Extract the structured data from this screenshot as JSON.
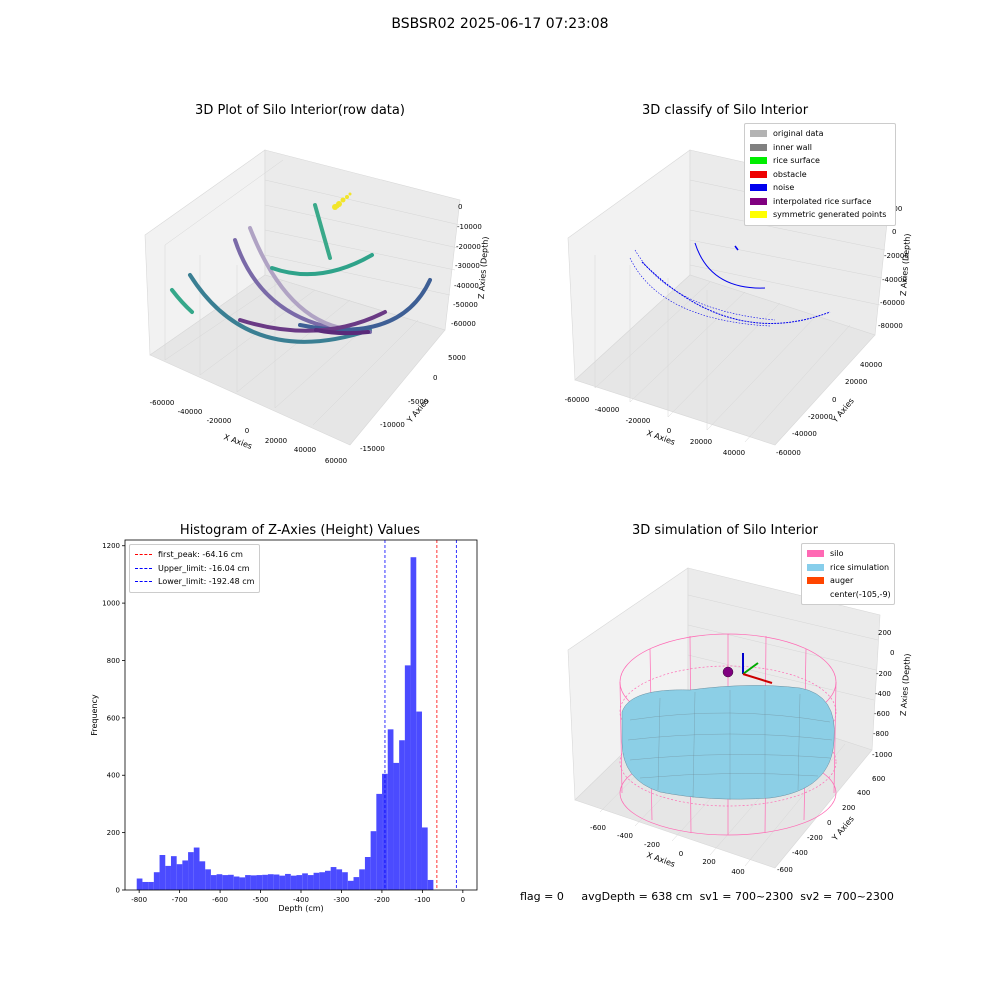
{
  "suptitle": "BSBSR02 2025-06-17 07:23:08",
  "footer": {
    "flag": "flag = 0",
    "avg_depth": "avgDepth = 638 cm",
    "sv1": "sv1 = 700~2300",
    "sv2": "sv2 = 700~2300"
  },
  "panels": {
    "raw": {
      "title": "3D Plot of Silo Interior(row data)",
      "xlabel": "X Axies",
      "ylabel": "Y Axies",
      "zlabel": "Z Axies (Depth)",
      "xticks": [
        "-60000",
        "-40000",
        "-20000",
        "0",
        "20000",
        "40000",
        "60000"
      ],
      "yticks": [
        "5000",
        "0",
        "-5000",
        "-10000",
        "-15000"
      ],
      "zticks": [
        "0",
        "-10000",
        "-20000",
        "-30000",
        "-40000",
        "-50000",
        "-60000"
      ]
    },
    "classify": {
      "title": "3D classify of Silo Interior",
      "xlabel": "X Axies",
      "ylabel": "Y Axies",
      "zlabel": "Z Axies (Depth)",
      "xticks": [
        "-60000",
        "-40000",
        "-20000",
        "0",
        "20000",
        "40000"
      ],
      "yticks": [
        "40000",
        "20000",
        "0",
        "-20000",
        "-40000",
        "-60000"
      ],
      "zticks": [
        "20000",
        "0",
        "-20000",
        "-40000",
        "-60000",
        "-80000"
      ],
      "legend": [
        {
          "label": "original data",
          "color": "#b3b3b3"
        },
        {
          "label": "inner wall",
          "color": "#808080"
        },
        {
          "label": "rice surface",
          "color": "#00ee00"
        },
        {
          "label": "obstacle",
          "color": "#ee0000"
        },
        {
          "label": "noise",
          "color": "#0000ee"
        },
        {
          "label": "interpolated rice surface",
          "color": "#800080"
        },
        {
          "label": "symmetric generated points",
          "color": "#ffff00"
        }
      ]
    },
    "simulation": {
      "title": "3D simulation of Silo Interior",
      "xlabel": "X Axies",
      "ylabel": "Y Axies",
      "zlabel": "Z Axies (Depth)",
      "xticks": [
        "-600",
        "-400",
        "-200",
        "0",
        "200",
        "400"
      ],
      "yticks": [
        "600",
        "400",
        "200",
        "0",
        "-200",
        "-400",
        "-600"
      ],
      "zticks": [
        "200",
        "0",
        "-200",
        "-400",
        "-600",
        "-800",
        "-1000"
      ],
      "legend": [
        {
          "label": "silo",
          "color": "#ff69b4"
        },
        {
          "label": "rice simulation",
          "color": "#87ceeb"
        },
        {
          "label": "auger",
          "color": "#ff4500"
        },
        {
          "label": "center(-105,-9)",
          "color": ""
        }
      ]
    }
  },
  "chart_data": [
    {
      "type": "bar",
      "title": "Histogram of Z-Axies (Height) Values",
      "xlabel": "Depth (cm)",
      "ylabel": "Frequency",
      "bar_color": "#4b4bff",
      "xlim": [
        -835,
        35
      ],
      "ylim": [
        0,
        1220
      ],
      "xticks": [
        -800,
        -700,
        -600,
        -500,
        -400,
        -300,
        -200,
        -100,
        0
      ],
      "yticks": [
        0,
        200,
        400,
        600,
        800,
        1000,
        1200
      ],
      "bin_width": 14.1,
      "bin_start": -806,
      "values": [
        40,
        28,
        28,
        62,
        122,
        84,
        118,
        90,
        103,
        132,
        148,
        100,
        72,
        52,
        55,
        52,
        53,
        47,
        44,
        52,
        51,
        52,
        53,
        55,
        54,
        50,
        56,
        50,
        52,
        58,
        52,
        60,
        62,
        67,
        80,
        72,
        62,
        32,
        45,
        72,
        115,
        205,
        335,
        405,
        560,
        443,
        522,
        783,
        1160,
        622,
        218,
        35
      ],
      "vlines": [
        {
          "x": -64.16,
          "label": "first_peak: -64.16 cm",
          "color": "#ff0000"
        },
        {
          "x": -16.04,
          "label": "Upper_limit: -16.04 cm",
          "color": "#0000ff"
        },
        {
          "x": -192.48,
          "label": "Lower_limit: -192.48 cm",
          "color": "#0000ff"
        }
      ],
      "legend_position": "upper-left"
    }
  ]
}
